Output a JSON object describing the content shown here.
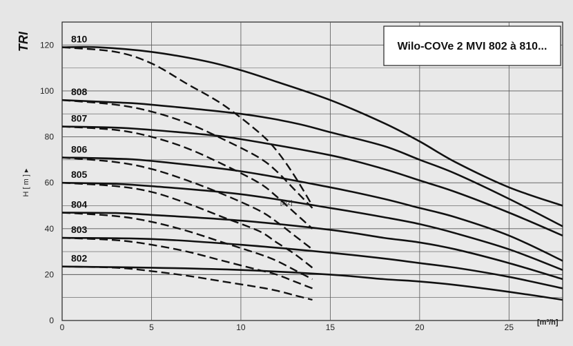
{
  "chart_data": {
    "type": "line",
    "title": "Wilo-COVe 2 MVI 802 à 810...",
    "corner_label": "TRI",
    "ylabel": "H [ m ] ▸",
    "xunit": "[m³/h]",
    "xlim": [
      0,
      28
    ],
    "ylim": [
      0,
      130
    ],
    "grid": true,
    "x_ticks": [
      0,
      5,
      10,
      15,
      20,
      25
    ],
    "y_ticks": [
      0,
      20,
      40,
      60,
      80,
      100,
      120
    ],
    "annotation": "[2/2]",
    "solid_series": [
      {
        "name": "810",
        "points": [
          [
            0,
            119
          ],
          [
            2,
            119
          ],
          [
            5,
            117
          ],
          [
            8,
            113
          ],
          [
            10,
            109
          ],
          [
            12,
            104
          ],
          [
            15,
            96
          ],
          [
            18,
            86
          ],
          [
            20,
            78
          ],
          [
            22,
            69
          ],
          [
            25,
            58
          ],
          [
            28,
            50
          ]
        ]
      },
      {
        "name": "808",
        "points": [
          [
            0,
            96
          ],
          [
            3,
            95
          ],
          [
            5,
            94
          ],
          [
            10,
            90
          ],
          [
            13,
            86
          ],
          [
            15,
            82
          ],
          [
            18,
            76
          ],
          [
            20,
            70
          ],
          [
            22,
            64
          ],
          [
            25,
            53
          ],
          [
            28,
            41
          ]
        ]
      },
      {
        "name": "807",
        "points": [
          [
            0,
            84.5
          ],
          [
            3,
            84
          ],
          [
            5,
            83
          ],
          [
            8,
            81
          ],
          [
            10,
            79
          ],
          [
            15,
            72
          ],
          [
            18,
            66
          ],
          [
            20,
            61
          ],
          [
            22,
            56
          ],
          [
            25,
            47
          ],
          [
            28,
            37
          ]
        ]
      },
      {
        "name": "806",
        "points": [
          [
            0,
            71
          ],
          [
            3,
            70.5
          ],
          [
            5,
            69.5
          ],
          [
            10,
            65
          ],
          [
            15,
            58
          ],
          [
            18,
            53
          ],
          [
            20,
            49
          ],
          [
            22,
            45
          ],
          [
            25,
            37
          ],
          [
            28,
            26
          ]
        ]
      },
      {
        "name": "805",
        "points": [
          [
            0,
            60
          ],
          [
            3,
            59.5
          ],
          [
            5,
            58.5
          ],
          [
            10,
            55
          ],
          [
            15,
            49
          ],
          [
            18,
            45
          ],
          [
            20,
            42
          ],
          [
            22,
            38
          ],
          [
            25,
            31
          ],
          [
            28,
            22
          ]
        ]
      },
      {
        "name": "804",
        "points": [
          [
            0,
            47
          ],
          [
            3,
            46.8
          ],
          [
            5,
            46
          ],
          [
            10,
            43.5
          ],
          [
            15,
            39.5
          ],
          [
            18,
            36
          ],
          [
            20,
            34
          ],
          [
            22,
            31
          ],
          [
            25,
            25
          ],
          [
            28,
            18
          ]
        ]
      },
      {
        "name": "803",
        "points": [
          [
            0,
            36
          ],
          [
            5,
            35.5
          ],
          [
            10,
            33
          ],
          [
            15,
            29.5
          ],
          [
            18,
            27
          ],
          [
            20,
            25
          ],
          [
            22,
            23
          ],
          [
            25,
            19
          ],
          [
            28,
            14
          ]
        ]
      },
      {
        "name": "802",
        "points": [
          [
            0,
            23.5
          ],
          [
            5,
            23
          ],
          [
            10,
            22
          ],
          [
            15,
            20
          ],
          [
            18,
            18
          ],
          [
            20,
            17
          ],
          [
            22,
            15.5
          ],
          [
            25,
            12.5
          ],
          [
            28,
            9
          ]
        ]
      }
    ],
    "dashed_series": [
      {
        "name": "810",
        "points": [
          [
            0,
            119
          ],
          [
            3,
            117
          ],
          [
            5,
            112
          ],
          [
            7,
            103
          ],
          [
            9,
            94
          ],
          [
            11,
            82
          ],
          [
            12,
            74
          ],
          [
            13,
            63
          ],
          [
            14,
            50
          ]
        ]
      },
      {
        "name": "808",
        "points": [
          [
            0,
            96
          ],
          [
            3,
            94
          ],
          [
            5,
            91
          ],
          [
            7,
            86
          ],
          [
            9,
            79
          ],
          [
            11,
            71
          ],
          [
            12,
            65
          ],
          [
            13,
            57
          ],
          [
            14,
            49
          ]
        ]
      },
      {
        "name": "807",
        "points": [
          [
            0,
            84.5
          ],
          [
            3,
            83
          ],
          [
            5,
            80
          ],
          [
            7,
            75
          ],
          [
            9,
            68
          ],
          [
            11,
            60
          ],
          [
            12,
            54
          ],
          [
            13,
            47
          ],
          [
            14,
            40
          ]
        ]
      },
      {
        "name": "806",
        "points": [
          [
            0,
            71
          ],
          [
            3,
            69
          ],
          [
            5,
            66
          ],
          [
            7,
            61
          ],
          [
            9,
            55
          ],
          [
            11,
            48
          ],
          [
            12,
            43
          ],
          [
            13,
            37
          ],
          [
            14,
            31
          ]
        ]
      },
      {
        "name": "805",
        "points": [
          [
            0,
            60
          ],
          [
            3,
            58.5
          ],
          [
            5,
            56
          ],
          [
            7,
            51
          ],
          [
            9,
            45
          ],
          [
            11,
            39
          ],
          [
            12,
            34
          ],
          [
            13,
            29
          ],
          [
            14,
            23
          ]
        ]
      },
      {
        "name": "804",
        "points": [
          [
            0,
            47
          ],
          [
            3,
            45.5
          ],
          [
            5,
            43
          ],
          [
            7,
            39
          ],
          [
            9,
            34
          ],
          [
            11,
            29
          ],
          [
            12,
            26
          ],
          [
            13,
            22
          ],
          [
            14,
            18
          ]
        ]
      },
      {
        "name": "803",
        "points": [
          [
            0,
            36
          ],
          [
            3,
            35
          ],
          [
            5,
            33
          ],
          [
            7,
            30
          ],
          [
            9,
            26
          ],
          [
            11,
            22
          ],
          [
            12,
            20
          ],
          [
            13,
            17
          ],
          [
            14,
            14
          ]
        ]
      },
      {
        "name": "802",
        "points": [
          [
            0,
            23.5
          ],
          [
            3,
            23
          ],
          [
            5,
            21.5
          ],
          [
            7,
            19.5
          ],
          [
            9,
            17
          ],
          [
            11,
            14.5
          ],
          [
            12,
            13
          ],
          [
            13,
            11
          ],
          [
            14,
            9
          ]
        ]
      }
    ]
  }
}
